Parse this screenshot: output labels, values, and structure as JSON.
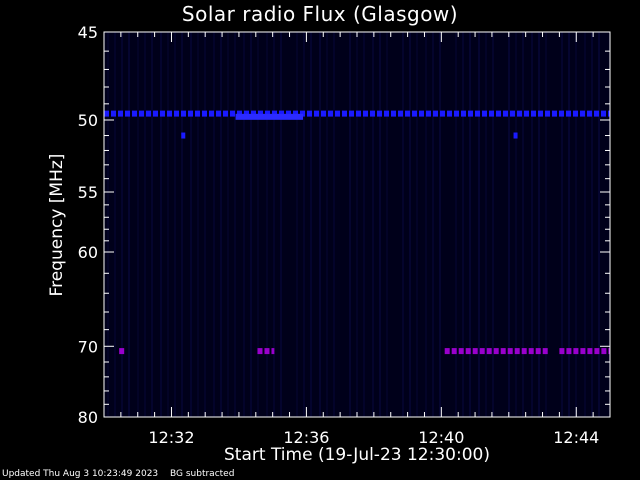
{
  "footer": {
    "updated": "Updated Thu Aug  3 10:23:49 2023",
    "note": "BG subtracted"
  },
  "chart_data": {
    "type": "heatmap",
    "title": "Solar radio Flux (Glasgow)",
    "xlabel": "Start Time (19-Jul-23 12:30:00)",
    "ylabel": "Frequency [MHz]",
    "x_unit": "minutes after 12:30:00",
    "xlim": [
      0,
      15
    ],
    "ylim": [
      45,
      80
    ],
    "y_scale": "reciprocal",
    "x_ticks": [
      {
        "value": 2,
        "label": "12:32"
      },
      {
        "value": 6,
        "label": "12:36"
      },
      {
        "value": 10,
        "label": "12:40"
      },
      {
        "value": 14,
        "label": "12:44"
      }
    ],
    "y_ticks": [
      {
        "value": 45,
        "label": "45"
      },
      {
        "value": 50,
        "label": "50"
      },
      {
        "value": 55,
        "label": "55"
      },
      {
        "value": 60,
        "label": "60"
      },
      {
        "value": 70,
        "label": "70"
      },
      {
        "value": 80,
        "label": "80"
      }
    ],
    "background_color": "#00001a",
    "features": [
      {
        "type": "band",
        "freq_mhz": 49.6,
        "x_start": 0,
        "x_end": 15,
        "color": "#1a1aff",
        "style": "dashed"
      },
      {
        "type": "band",
        "freq_mhz": 49.8,
        "x_start": 3.9,
        "x_end": 5.9,
        "color": "#2b2bff",
        "style": "solid"
      },
      {
        "type": "spot",
        "freq_mhz": 51.0,
        "x": 2.35,
        "color": "#1a1aff"
      },
      {
        "type": "spot",
        "freq_mhz": 51.0,
        "x": 12.2,
        "color": "#1a1aff"
      },
      {
        "type": "band",
        "freq_mhz": 70.6,
        "x_start": 0.45,
        "x_end": 0.6,
        "color": "#9900cc",
        "style": "dashed"
      },
      {
        "type": "band",
        "freq_mhz": 70.6,
        "x_start": 4.55,
        "x_end": 5.05,
        "color": "#9900cc",
        "style": "dashed"
      },
      {
        "type": "band",
        "freq_mhz": 70.6,
        "x_start": 10.1,
        "x_end": 13.2,
        "color": "#9900cc",
        "style": "dashed"
      },
      {
        "type": "band",
        "freq_mhz": 70.6,
        "x_start": 13.5,
        "x_end": 15,
        "color": "#9900cc",
        "style": "dashed"
      }
    ]
  }
}
